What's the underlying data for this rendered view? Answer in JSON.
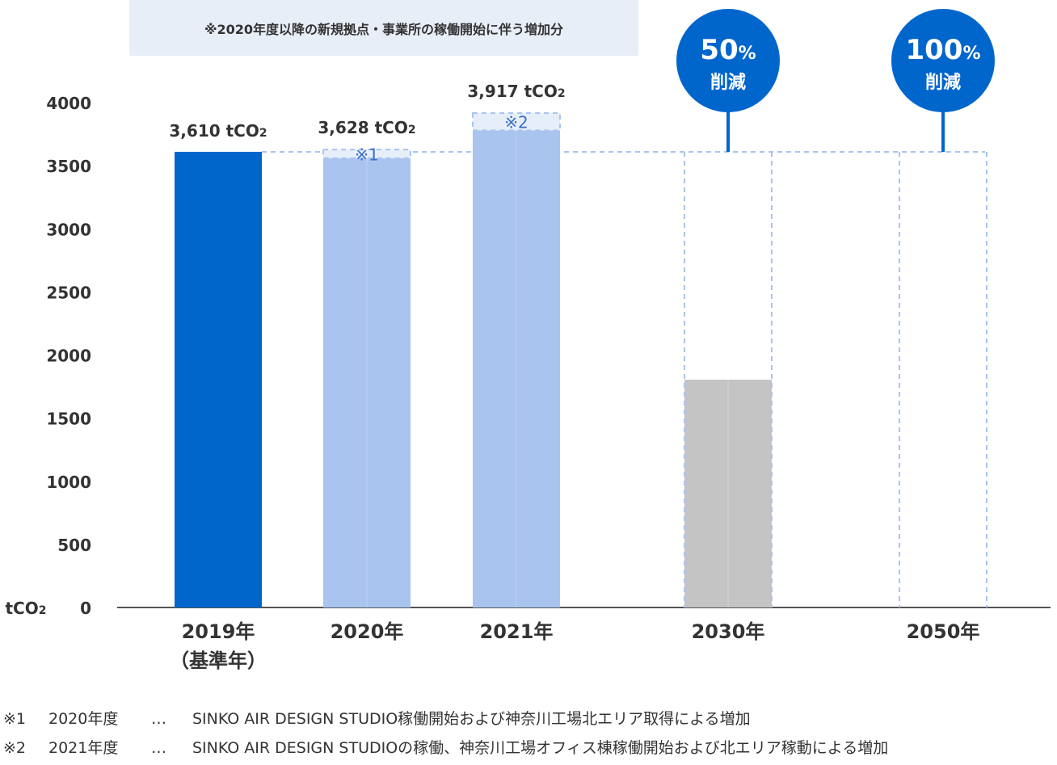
{
  "chart_data": {
    "type": "bar",
    "unit_label": "tCO2",
    "ylim": [
      0,
      4000
    ],
    "yticks": [
      0,
      500,
      1000,
      1500,
      2000,
      2500,
      3000,
      3500,
      4000
    ],
    "grid": false,
    "top_banner": "※2020年度以降の新規拠点・事業所の稼働開始に伴う増加分",
    "baseline_value": 3610,
    "categories": [
      {
        "line1": "2019年",
        "line2": "（基準年）",
        "value": 3610,
        "value_label": "3,610 tCO2",
        "kind": "base",
        "color": "#0066cc"
      },
      {
        "line1": "2020年",
        "line2": "",
        "value": 3628,
        "fill_top": 3560,
        "value_label": "3,628 tCO2",
        "increase_mark": "※1",
        "kind": "actual",
        "color": "#a9c4ef"
      },
      {
        "line1": "2021年",
        "line2": "",
        "value": 3917,
        "fill_top": 3780,
        "value_label": "3,917 tCO2",
        "increase_mark": "※2",
        "kind": "actual",
        "color": "#a9c4ef"
      },
      {
        "line1": "2030年",
        "line2": "",
        "value": 1805,
        "kind": "target",
        "color": "#c4c4c4",
        "badge_value": "50",
        "badge_unit": "%",
        "badge_text": "削減"
      },
      {
        "line1": "2050年",
        "line2": "",
        "value": 0,
        "kind": "target",
        "color": "#c4c4c4",
        "badge_value": "100",
        "badge_unit": "%",
        "badge_text": "削減"
      }
    ],
    "colors": {
      "accent": "#0066cc",
      "dashed": "#a9c4ef",
      "increase_box": "#e6eefa",
      "increase_text": "#3a6fc4",
      "banner_bg": "#e8eef8"
    }
  },
  "footnotes": [
    {
      "key": "※1",
      "year": "2020年度",
      "dots": "…",
      "text": "SINKO AIR DESIGN STUDIO稼働開始および神奈川工場北エリア取得による増加"
    },
    {
      "key": "※2",
      "year": "2021年度",
      "dots": "…",
      "text": "SINKO AIR DESIGN STUDIOの稼働、神奈川工場オフィス棟稼働開始および北エリア稼動による増加"
    }
  ]
}
